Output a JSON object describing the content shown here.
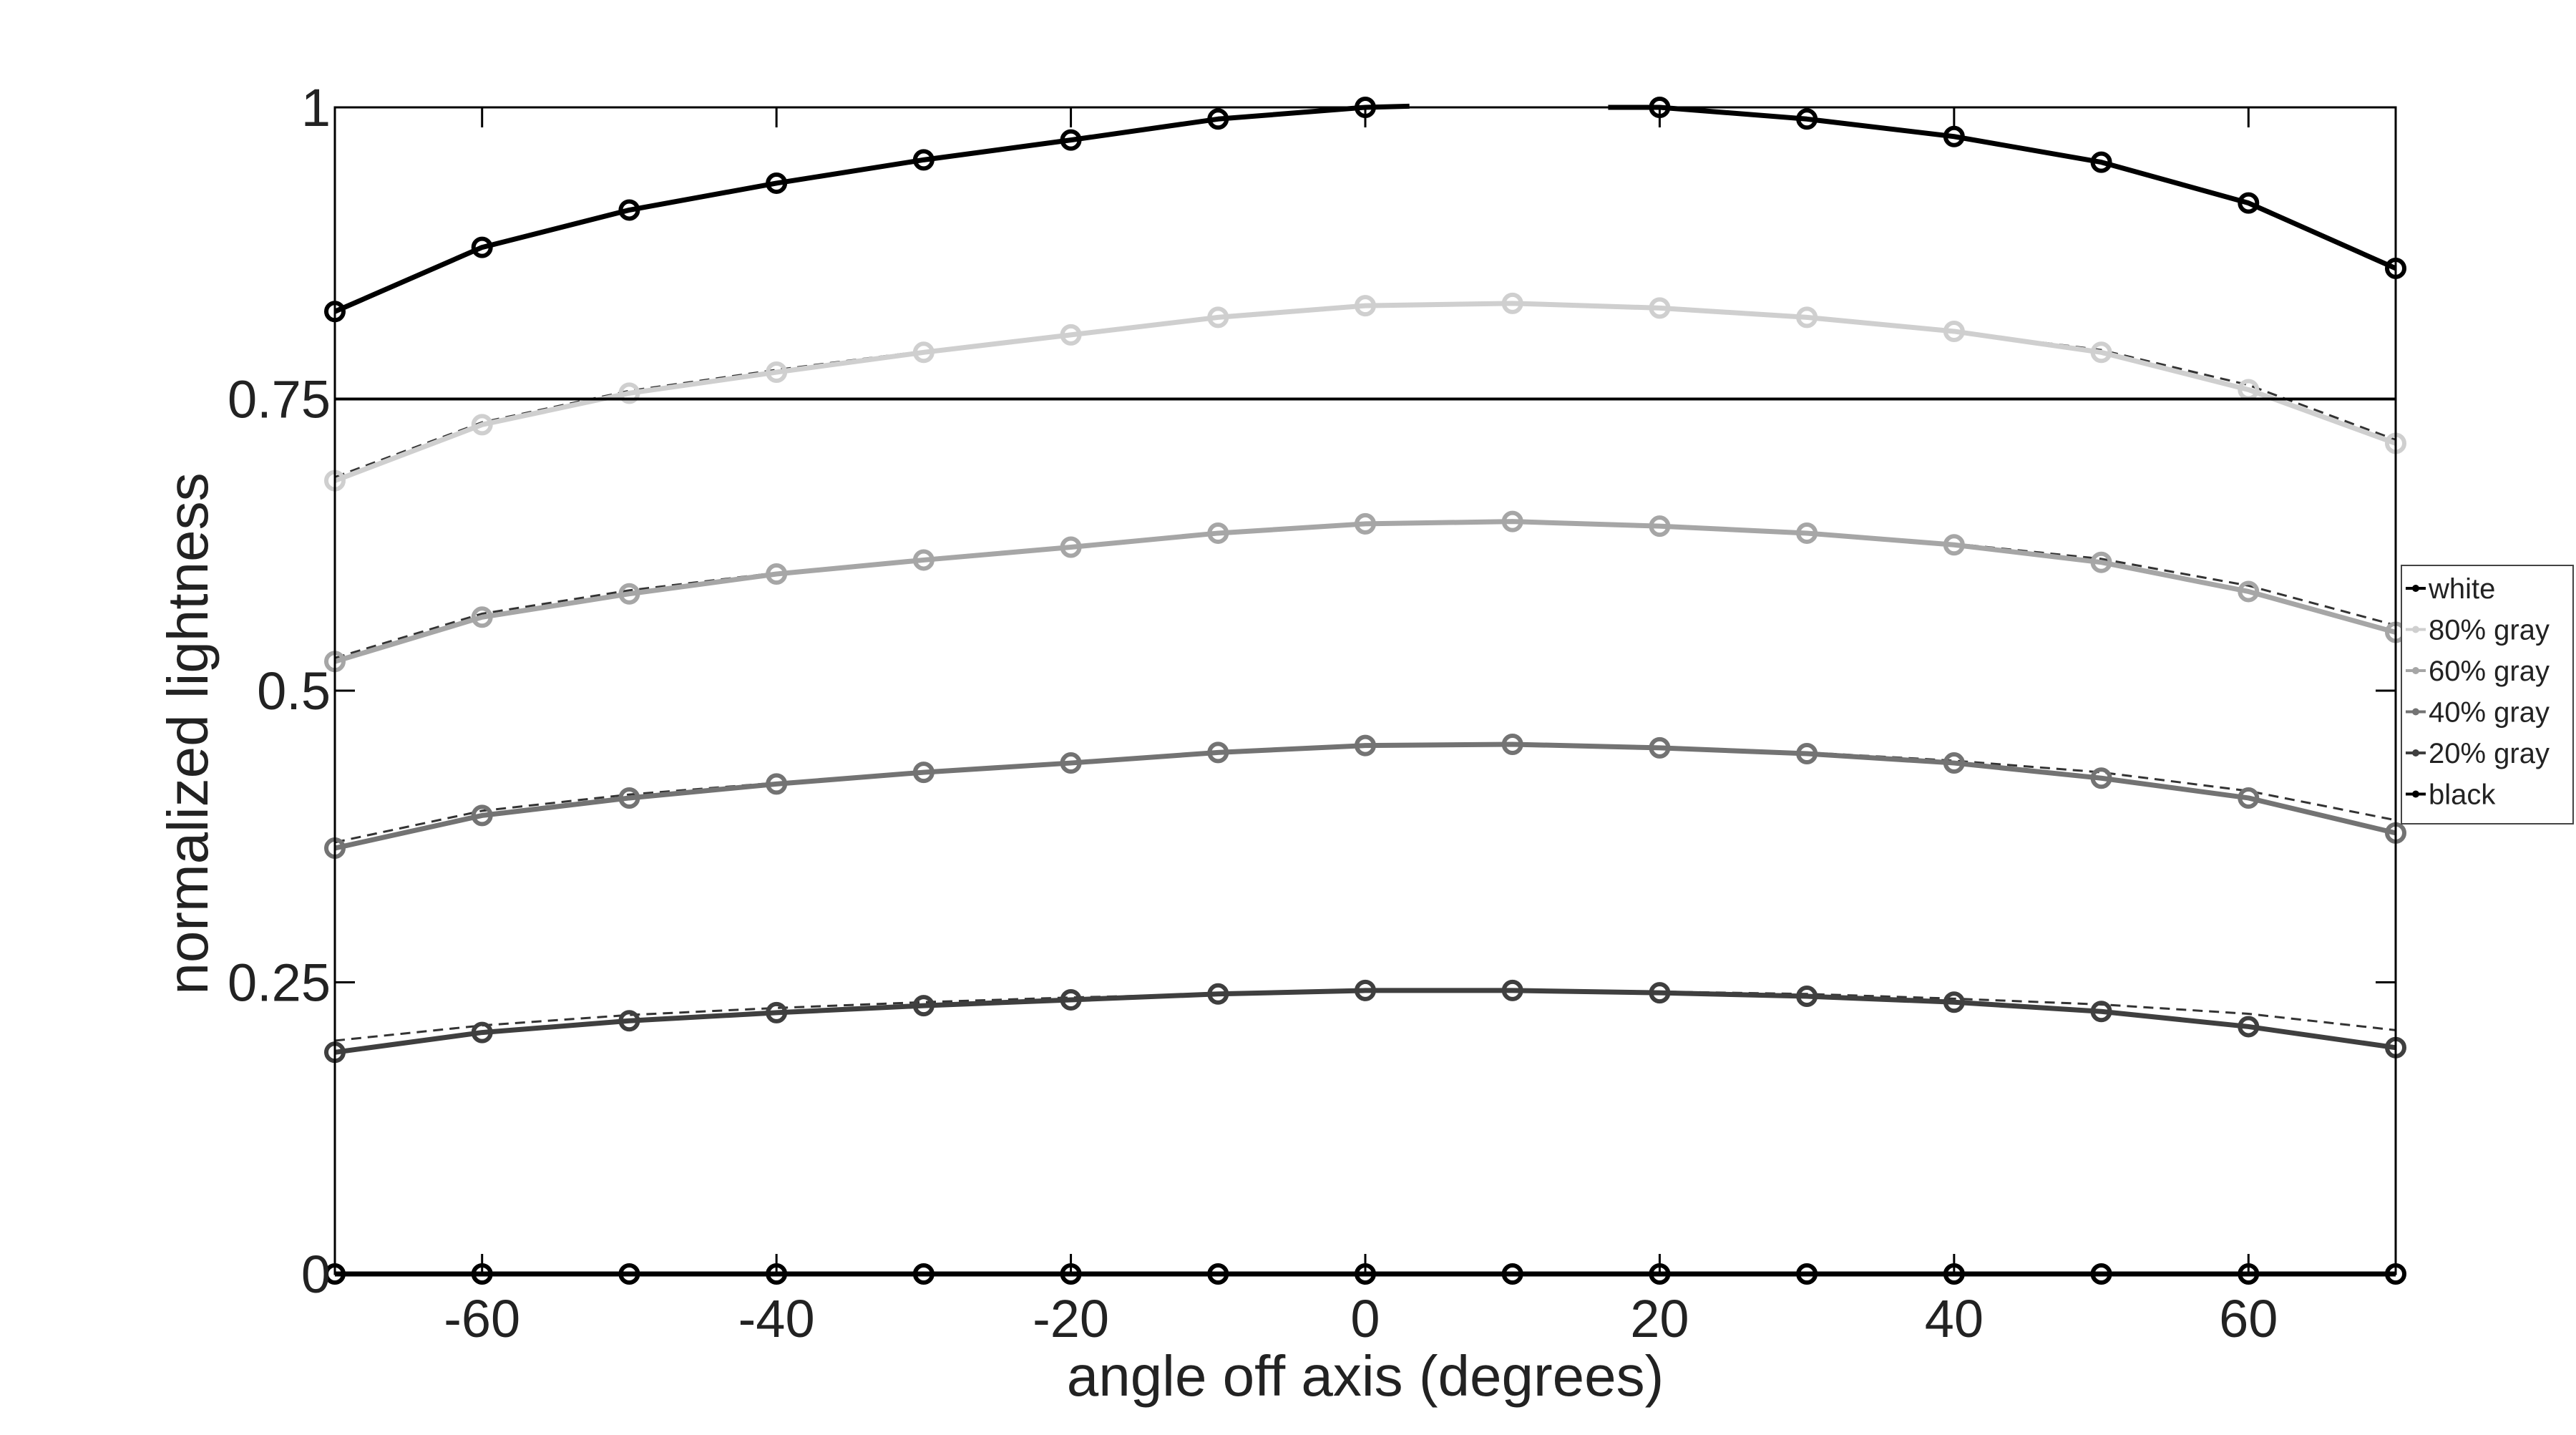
{
  "chart_data": {
    "type": "line",
    "xlabel": "angle off axis (degrees)",
    "ylabel": "normalized lightness",
    "xlim": [
      -70,
      70
    ],
    "ylim": [
      0,
      1
    ],
    "xticks": [
      -60,
      -40,
      -20,
      0,
      20,
      40,
      60
    ],
    "yticks": [
      0,
      0.25,
      0.5,
      0.75,
      1
    ],
    "ytick_labels": [
      "0",
      "0.25",
      "0.5",
      "0.75",
      "1"
    ],
    "reference_line_y": 0.75,
    "grid": false,
    "legend_position": "right",
    "x": [
      -70,
      -60,
      -50,
      -40,
      -30,
      -20,
      -10,
      0,
      10,
      20,
      30,
      40,
      50,
      60,
      70
    ],
    "series": [
      {
        "name": "white",
        "color": "#000000",
        "gap_between": [
          0,
          20
        ],
        "values": [
          0.825,
          0.88,
          0.912,
          0.935,
          0.955,
          0.972,
          0.99,
          1.0,
          null,
          1.0,
          0.99,
          0.975,
          0.953,
          0.918,
          0.862
        ],
        "fit": []
      },
      {
        "name": "80% gray",
        "color": "#cfcfcf",
        "values": [
          0.68,
          0.728,
          0.755,
          0.773,
          0.79,
          0.805,
          0.82,
          0.83,
          0.832,
          0.828,
          0.82,
          0.808,
          0.79,
          0.758,
          0.712
        ],
        "fit": [
          0.683,
          0.73,
          0.757,
          0.775,
          0.791,
          0.806,
          0.82,
          0.83,
          0.832,
          0.828,
          0.82,
          0.808,
          0.792,
          0.762,
          0.715
        ]
      },
      {
        "name": "60% gray",
        "color": "#a6a6a6",
        "values": [
          0.525,
          0.563,
          0.583,
          0.6,
          0.612,
          0.623,
          0.635,
          0.643,
          0.645,
          0.641,
          0.635,
          0.625,
          0.61,
          0.585,
          0.55
        ],
        "fit": [
          0.528,
          0.566,
          0.586,
          0.601,
          0.613,
          0.624,
          0.635,
          0.643,
          0.645,
          0.641,
          0.635,
          0.626,
          0.613,
          0.59,
          0.556
        ]
      },
      {
        "name": "40% gray",
        "color": "#737373",
        "values": [
          0.365,
          0.393,
          0.408,
          0.42,
          0.43,
          0.438,
          0.447,
          0.453,
          0.454,
          0.451,
          0.446,
          0.438,
          0.425,
          0.408,
          0.378
        ],
        "fit": [
          0.37,
          0.397,
          0.411,
          0.421,
          0.43,
          0.439,
          0.447,
          0.453,
          0.454,
          0.452,
          0.447,
          0.44,
          0.43,
          0.414,
          0.389
        ]
      },
      {
        "name": "20% gray",
        "color": "#3f3f3f",
        "values": [
          0.19,
          0.207,
          0.217,
          0.224,
          0.23,
          0.235,
          0.24,
          0.243,
          0.243,
          0.241,
          0.238,
          0.233,
          0.225,
          0.212,
          0.194
        ],
        "fit": [
          0.2,
          0.213,
          0.222,
          0.228,
          0.233,
          0.237,
          0.24,
          0.242,
          0.243,
          0.242,
          0.24,
          0.236,
          0.231,
          0.223,
          0.209
        ]
      },
      {
        "name": "black",
        "color": "#000000",
        "values": [
          0,
          0,
          0,
          0,
          0,
          0,
          0,
          0,
          0,
          0,
          0,
          0,
          0,
          0,
          0
        ],
        "fit": []
      }
    ]
  }
}
